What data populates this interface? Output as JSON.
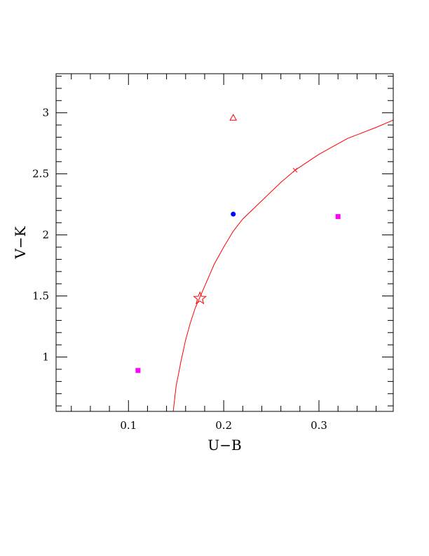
{
  "chart_data": {
    "type": "scatter",
    "xlabel": "U−B",
    "ylabel": "V−K",
    "xlim": [
      0.024,
      0.378
    ],
    "ylim": [
      0.555,
      3.32
    ],
    "x_ticks": [
      {
        "value": 0.1,
        "label": "0.1"
      },
      {
        "value": 0.2,
        "label": "0.2"
      },
      {
        "value": 0.3,
        "label": "0.3"
      }
    ],
    "y_ticks": [
      {
        "value": 1,
        "label": "1"
      },
      {
        "value": 1.5,
        "label": "1.5"
      },
      {
        "value": 2,
        "label": "2"
      },
      {
        "value": 2.5,
        "label": "2.5"
      },
      {
        "value": 3,
        "label": "3"
      }
    ],
    "x_minor_step": 0.02,
    "y_minor_step": 0.1,
    "grid": false,
    "curve": {
      "color": "#ff0000",
      "points": [
        [
          0.147,
          0.555
        ],
        [
          0.15,
          0.76
        ],
        [
          0.155,
          0.96
        ],
        [
          0.16,
          1.14
        ],
        [
          0.165,
          1.28
        ],
        [
          0.17,
          1.4
        ],
        [
          0.175,
          1.49
        ],
        [
          0.18,
          1.58
        ],
        [
          0.19,
          1.76
        ],
        [
          0.2,
          1.9
        ],
        [
          0.21,
          2.03
        ],
        [
          0.22,
          2.13
        ],
        [
          0.24,
          2.28
        ],
        [
          0.26,
          2.43
        ],
        [
          0.275,
          2.53
        ],
        [
          0.3,
          2.66
        ],
        [
          0.33,
          2.79
        ],
        [
          0.36,
          2.88
        ],
        [
          0.378,
          2.94
        ]
      ]
    },
    "points": [
      {
        "x": 0.11,
        "y": 0.89,
        "marker": "square",
        "color": "#ff00ff"
      },
      {
        "x": 0.32,
        "y": 2.15,
        "marker": "square",
        "color": "#ff00ff"
      },
      {
        "x": 0.21,
        "y": 2.17,
        "marker": "circle",
        "color": "#0000ff"
      },
      {
        "x": 0.21,
        "y": 2.96,
        "marker": "triangle",
        "color": "#ff0000"
      },
      {
        "x": 0.175,
        "y": 1.48,
        "marker": "star",
        "color": "#ff0000"
      },
      {
        "x": 0.275,
        "y": 2.53,
        "marker": "cross",
        "color": "#ff0000"
      }
    ]
  }
}
